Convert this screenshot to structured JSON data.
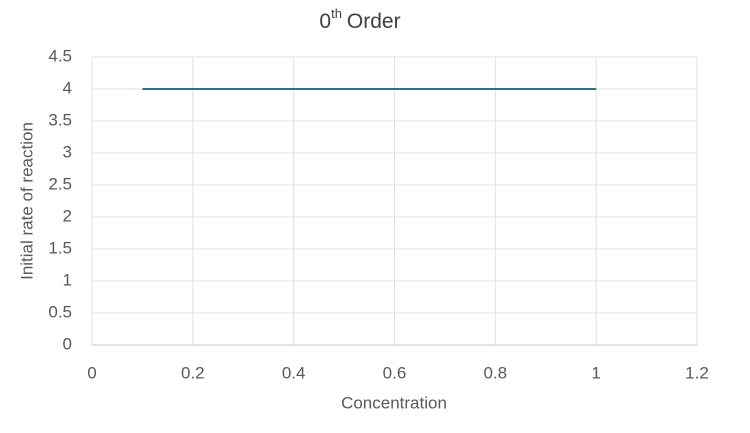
{
  "chart_data": {
    "type": "line",
    "title": [
      "0",
      "th",
      "Order"
    ],
    "x_label": "Concentration",
    "y_label": "Initial rate of reaction",
    "x": [
      0.1,
      0.2,
      0.3,
      0.4,
      0.5,
      0.6,
      0.7,
      0.8,
      0.9,
      1
    ],
    "values": [
      4,
      4,
      4,
      4,
      4,
      4,
      4,
      4,
      4,
      4
    ],
    "color": "#2f6f90",
    "xlim": [
      0,
      1.2
    ],
    "xticks": [
      0,
      0.2,
      0.4,
      0.6,
      0.8,
      1,
      1.2
    ],
    "ylim": [
      0,
      4.5
    ],
    "yticks": [
      0,
      0.5,
      1,
      1.5,
      2,
      2.5,
      3,
      3.5,
      4,
      4.5
    ],
    "grid": true
  }
}
